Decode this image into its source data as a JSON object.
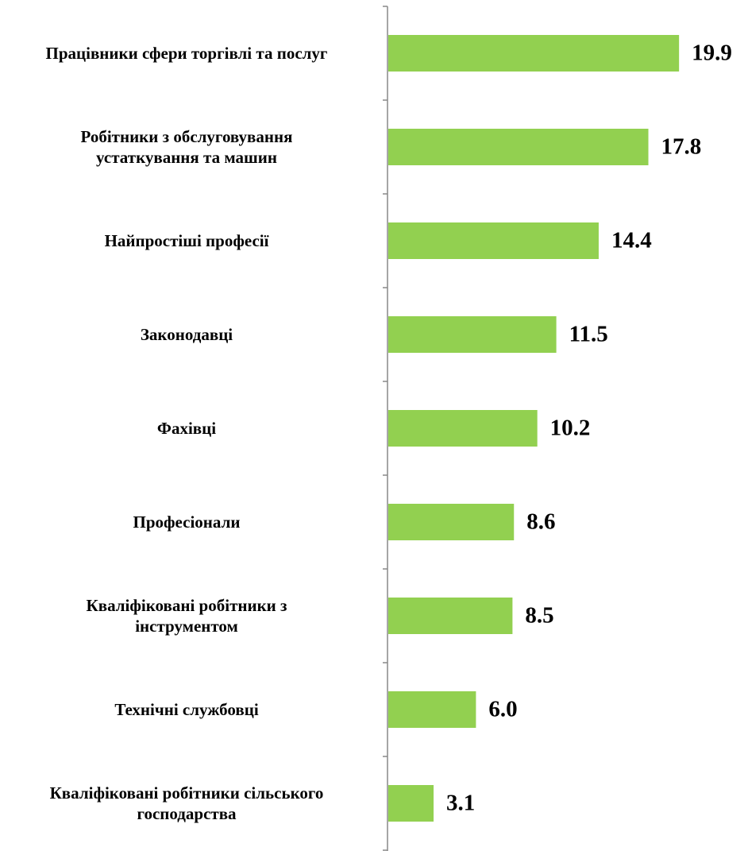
{
  "chart_data": {
    "type": "barh",
    "categories": [
      "Працівники сфери торгівлі та послуг",
      "Робітники з обслуговування\nустаткування та машин",
      "Найпростіші професії",
      "Законодавці",
      "Фахівці",
      "Професіонали",
      "Кваліфіковані робітники з\nінструментом",
      "Технічні службовці",
      "Кваліфіковані робітники сільського\nгосподарства"
    ],
    "values": [
      19.9,
      17.8,
      14.4,
      11.5,
      10.2,
      8.6,
      8.5,
      6.0,
      3.1
    ],
    "value_labels": [
      "19.9",
      "17.8",
      "14.4",
      "11.5",
      "10.2",
      "8.6",
      "8.5",
      "6.0",
      "3.1"
    ],
    "color": "#92d050"
  }
}
